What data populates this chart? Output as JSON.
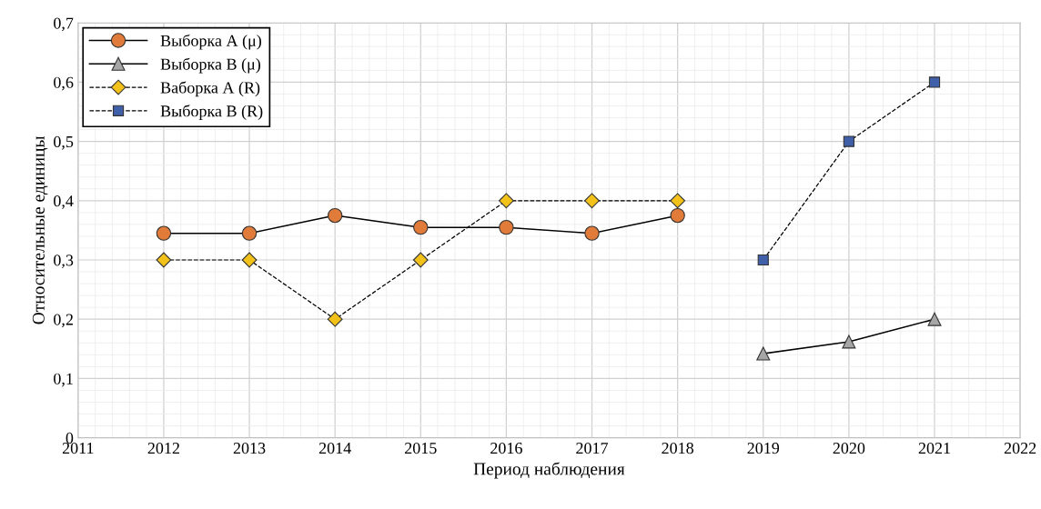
{
  "chart_data": {
    "type": "line",
    "xlabel": "Период наблюдения",
    "ylabel": "Относительные единицы",
    "x": [
      2012,
      2013,
      2014,
      2015,
      2016,
      2017,
      2018
    ],
    "series": [
      {
        "name": "Выборка А (μ)",
        "color": "#e07b39",
        "marker": "circle",
        "line_style": "solid",
        "values": [
          0.345,
          0.345,
          0.375,
          0.355,
          0.355,
          0.345,
          0.375
        ]
      },
      {
        "name": "Выборка В (μ)",
        "color": "#a6a6a6",
        "marker": "triangle",
        "line_style": "solid",
        "x": [
          2019,
          2020,
          2021
        ],
        "values": [
          0.142,
          0.162,
          0.2
        ]
      },
      {
        "name": "Ваборка А (R)",
        "color": "#f2c21b",
        "marker": "diamond",
        "line_style": "dashed",
        "values": [
          0.3,
          0.3,
          0.2,
          0.3,
          0.4,
          0.4,
          0.4
        ]
      },
      {
        "name": "Выборка В (R)",
        "color": "#3f5fa8",
        "marker": "square",
        "line_style": "dashed",
        "x": [
          2019,
          2020,
          2021
        ],
        "values": [
          0.3,
          0.5,
          0.6
        ]
      }
    ],
    "xlim": [
      2011,
      2022
    ],
    "xticks": [
      2011,
      2012,
      2013,
      2014,
      2015,
      2016,
      2017,
      2018,
      2019,
      2020,
      2021,
      2022
    ],
    "ylim": [
      0,
      0.7
    ],
    "yticks": [
      0,
      {
        "value": 0.1,
        "label": "0,1"
      },
      {
        "value": 0.2,
        "label": "0,2"
      },
      {
        "value": 0.3,
        "label": "0,3"
      },
      {
        "value": 0.4,
        "label": "0,4"
      },
      {
        "value": 0.5,
        "label": "0,5"
      },
      {
        "value": 0.6,
        "label": "0,6"
      },
      {
        "value": 0.7,
        "label": "0,7"
      }
    ],
    "grid": true,
    "legend": "top left"
  }
}
